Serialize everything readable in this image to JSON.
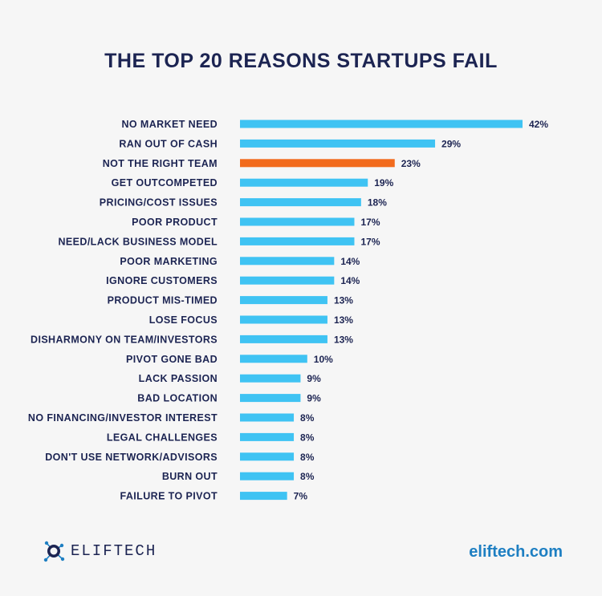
{
  "title": "THE TOP 20 REASONS STARTUPS FAIL",
  "logo_text": "ELIFTECH",
  "logo_icon": "eliftech-logo-icon",
  "website": "eliftech.com",
  "colors": {
    "bar": "#3fc3f3",
    "highlight": "#f26b1d",
    "text": "#1c2452",
    "link": "#1e7fc2"
  },
  "chart_data": {
    "type": "bar",
    "orientation": "horizontal",
    "title": "THE TOP 20 REASONS STARTUPS FAIL",
    "xlabel": "",
    "ylabel": "",
    "unit": "%",
    "grid": false,
    "xlim": [
      0,
      42
    ],
    "highlight_index": 2,
    "categories": [
      "NO MARKET NEED",
      "RAN OUT OF CASH",
      "NOT THE RIGHT TEAM",
      "GET OUTCOMPETED",
      "PRICING/COST ISSUES",
      "POOR PRODUCT",
      "NEED/LACK BUSINESS MODEL",
      "POOR MARKETING",
      "IGNORE CUSTOMERS",
      "PRODUCT MIS-TIMED",
      "LOSE FOCUS",
      "DISHARMONY ON TEAM/INVESTORS",
      "PIVOT GONE BAD",
      "LACK PASSION",
      "BAD LOCATION",
      "NO FINANCING/INVESTOR INTEREST",
      "LEGAL CHALLENGES",
      "DON'T USE NETWORK/ADVISORS",
      "BURN OUT",
      "FAILURE TO PIVOT"
    ],
    "values": [
      42,
      29,
      23,
      19,
      18,
      17,
      17,
      14,
      14,
      13,
      13,
      13,
      10,
      9,
      9,
      8,
      8,
      8,
      8,
      7
    ],
    "value_labels": [
      "42%",
      "29%",
      "23%",
      "19%",
      "18%",
      "17%",
      "17%",
      "14%",
      "14%",
      "13%",
      "13%",
      "13%",
      "10%",
      "9%",
      "9%",
      "8%",
      "8%",
      "8%",
      "8%",
      "7%"
    ]
  }
}
